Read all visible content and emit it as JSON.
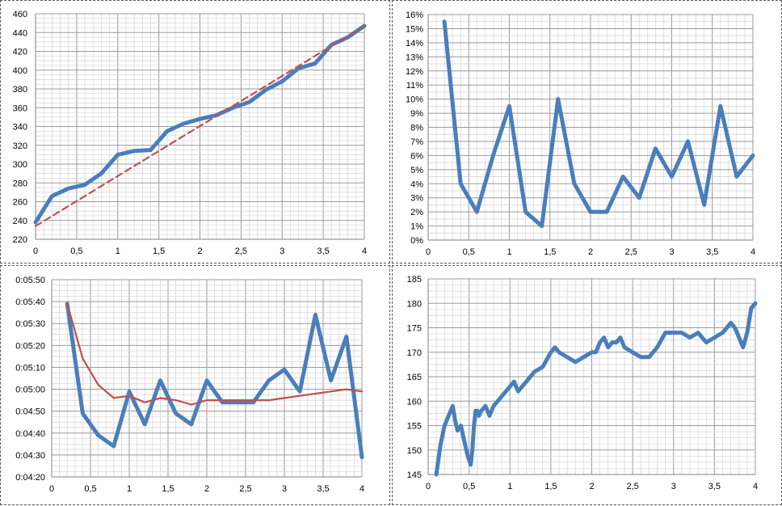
{
  "chart_data": [
    {
      "type": "line",
      "title": "",
      "xlabel": "",
      "ylabel": "",
      "xlim": [
        0,
        4
      ],
      "ylim": [
        220,
        460
      ],
      "x_ticks": [
        "0",
        "0,5",
        "1",
        "1,5",
        "2",
        "2,5",
        "3",
        "3,5",
        "4"
      ],
      "y_ticks": [
        "220",
        "240",
        "260",
        "280",
        "300",
        "320",
        "340",
        "360",
        "380",
        "400",
        "420",
        "440",
        "460"
      ],
      "grid": true,
      "series": [
        {
          "style": "solid-thick",
          "color": "#4a7ebb",
          "x": [
            0,
            0.2,
            0.4,
            0.6,
            0.8,
            1.0,
            1.2,
            1.4,
            1.6,
            1.8,
            2.0,
            2.2,
            2.4,
            2.6,
            2.8,
            3.0,
            3.2,
            3.4,
            3.6,
            3.8,
            4.0
          ],
          "y": [
            238,
            266,
            274,
            278,
            290,
            310,
            314,
            315,
            335,
            343,
            348,
            352,
            360,
            366,
            379,
            388,
            402,
            407,
            427,
            435,
            447
          ]
        },
        {
          "style": "dashed",
          "color": "#c0504d",
          "x": [
            0,
            4.0
          ],
          "y": [
            234,
            447
          ]
        }
      ]
    },
    {
      "type": "line",
      "title": "",
      "xlabel": "",
      "ylabel": "",
      "xlim": [
        0,
        4
      ],
      "ylim": [
        0,
        16
      ],
      "x_ticks": [
        "0",
        "0,5",
        "1",
        "1,5",
        "2",
        "2,5",
        "3",
        "3,5",
        "4"
      ],
      "y_ticks": [
        "0%",
        "1%",
        "2%",
        "3%",
        "4%",
        "5%",
        "6%",
        "7%",
        "8%",
        "9%",
        "10%",
        "11%",
        "12%",
        "13%",
        "14%",
        "15%",
        "16%"
      ],
      "grid": true,
      "series": [
        {
          "style": "solid-thick",
          "color": "#4a7ebb",
          "x": [
            0.2,
            0.4,
            0.6,
            0.8,
            1.0,
            1.2,
            1.4,
            1.6,
            1.8,
            2.0,
            2.2,
            2.4,
            2.6,
            2.8,
            3.0,
            3.2,
            3.4,
            3.6,
            3.8,
            4.0
          ],
          "y": [
            15.5,
            4,
            2,
            6,
            9.5,
            2,
            1,
            10,
            4,
            2,
            2,
            4.5,
            3,
            6.5,
            4.5,
            7,
            2.5,
            9.5,
            4.5,
            6
          ]
        }
      ]
    },
    {
      "type": "line",
      "title": "",
      "xlabel": "",
      "ylabel": "",
      "xlim": [
        0,
        4
      ],
      "ylim": [
        "0:04:20",
        "0:05:50"
      ],
      "x_ticks": [
        "0",
        "0,5",
        "1",
        "1,5",
        "2",
        "2,5",
        "3",
        "3,5",
        "4"
      ],
      "y_ticks": [
        "0:04:20",
        "0:04:30",
        "0:04:40",
        "0:04:50",
        "0:05:00",
        "0:05:10",
        "0:05:20",
        "0:05:30",
        "0:05:40",
        "0:05:50"
      ],
      "grid": true,
      "series": [
        {
          "style": "solid-thick",
          "color": "#4a7ebb",
          "x": [
            0.2,
            0.4,
            0.6,
            0.8,
            1.0,
            1.2,
            1.4,
            1.6,
            1.8,
            2.0,
            2.2,
            2.4,
            2.6,
            2.8,
            3.0,
            3.2,
            3.4,
            3.6,
            3.8,
            4.0
          ],
          "y": [
            "0:05:39",
            "0:04:49",
            "0:04:39",
            "0:04:34",
            "0:04:59",
            "0:04:44",
            "0:05:04",
            "0:04:49",
            "0:04:44",
            "0:05:04",
            "0:04:54",
            "0:04:54",
            "0:04:54",
            "0:05:04",
            "0:05:09",
            "0:04:59",
            "0:05:34",
            "0:05:04",
            "0:05:24",
            "0:04:29"
          ]
        },
        {
          "style": "solid-thin",
          "color": "#c0504d",
          "x": [
            0.2,
            0.4,
            0.6,
            0.8,
            1.0,
            1.2,
            1.4,
            1.6,
            1.8,
            2.0,
            2.2,
            2.4,
            2.6,
            2.8,
            3.0,
            3.2,
            3.4,
            3.6,
            3.8,
            4.0
          ],
          "y": [
            "0:05:39",
            "0:05:14",
            "0:05:02",
            "0:04:56",
            "0:04:57",
            "0:04:54",
            "0:04:56",
            "0:04:55",
            "0:04:53",
            "0:04:55",
            "0:04:55",
            "0:04:55",
            "0:04:55",
            "0:04:55",
            "0:04:56",
            "0:04:57",
            "0:04:58",
            "0:04:59",
            "0:05:00",
            "0:04:59"
          ]
        }
      ]
    },
    {
      "type": "line",
      "title": "",
      "xlabel": "",
      "ylabel": "",
      "xlim": [
        0,
        4
      ],
      "ylim": [
        145,
        185
      ],
      "x_ticks": [
        "0",
        "0,5",
        "1",
        "1,5",
        "2",
        "2,5",
        "3",
        "3,5",
        "4"
      ],
      "y_ticks": [
        "145",
        "150",
        "155",
        "160",
        "165",
        "170",
        "175",
        "180",
        "185"
      ],
      "grid": true,
      "series": [
        {
          "style": "solid-thick",
          "color": "#4a7ebb",
          "x": [
            0.1,
            0.15,
            0.2,
            0.25,
            0.3,
            0.33,
            0.36,
            0.4,
            0.44,
            0.48,
            0.5,
            0.52,
            0.54,
            0.56,
            0.58,
            0.6,
            0.62,
            0.65,
            0.7,
            0.75,
            0.8,
            0.85,
            0.9,
            0.95,
            1.0,
            1.05,
            1.1,
            1.15,
            1.2,
            1.3,
            1.4,
            1.5,
            1.55,
            1.6,
            1.7,
            1.8,
            1.9,
            2.0,
            2.05,
            2.1,
            2.15,
            2.2,
            2.25,
            2.3,
            2.35,
            2.4,
            2.5,
            2.6,
            2.7,
            2.8,
            2.9,
            3.0,
            3.1,
            3.2,
            3.3,
            3.4,
            3.5,
            3.6,
            3.65,
            3.7,
            3.75,
            3.8,
            3.85,
            3.9,
            3.95,
            4.0
          ],
          "y": [
            145,
            151,
            155,
            157,
            159,
            156,
            154,
            155,
            152,
            149,
            148,
            147,
            150,
            155,
            158,
            158,
            157,
            158,
            159,
            157,
            159,
            160,
            161,
            162,
            163,
            164,
            162,
            163,
            164,
            166,
            167,
            170,
            171,
            170,
            169,
            168,
            169,
            170,
            170,
            172,
            173,
            171,
            172,
            172,
            173,
            171,
            170,
            169,
            169,
            171,
            174,
            174,
            174,
            173,
            174,
            172,
            173,
            174,
            175,
            176,
            175,
            173,
            171,
            174,
            179,
            180
          ]
        }
      ]
    }
  ]
}
